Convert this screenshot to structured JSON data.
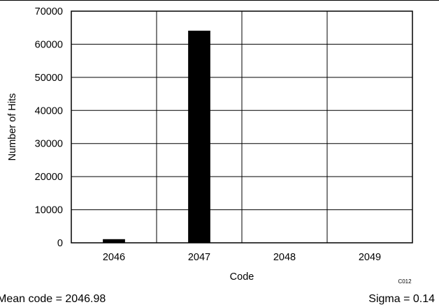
{
  "chart_data": {
    "type": "bar",
    "categories": [
      "2046",
      "2047",
      "2048",
      "2049"
    ],
    "values": [
      1100,
      64100,
      0,
      0
    ],
    "xlabel": "Code",
    "ylabel": "Number of Hits",
    "ylim": [
      0,
      70000
    ],
    "yticks": [
      0,
      10000,
      20000,
      30000,
      40000,
      50000,
      60000,
      70000
    ],
    "grid": true,
    "legend": "none",
    "bar_color": "#000000"
  },
  "annotations": {
    "figure_code": "C012",
    "mean": "Mean code = 2046.98",
    "sigma": "Sigma = 0.14"
  }
}
